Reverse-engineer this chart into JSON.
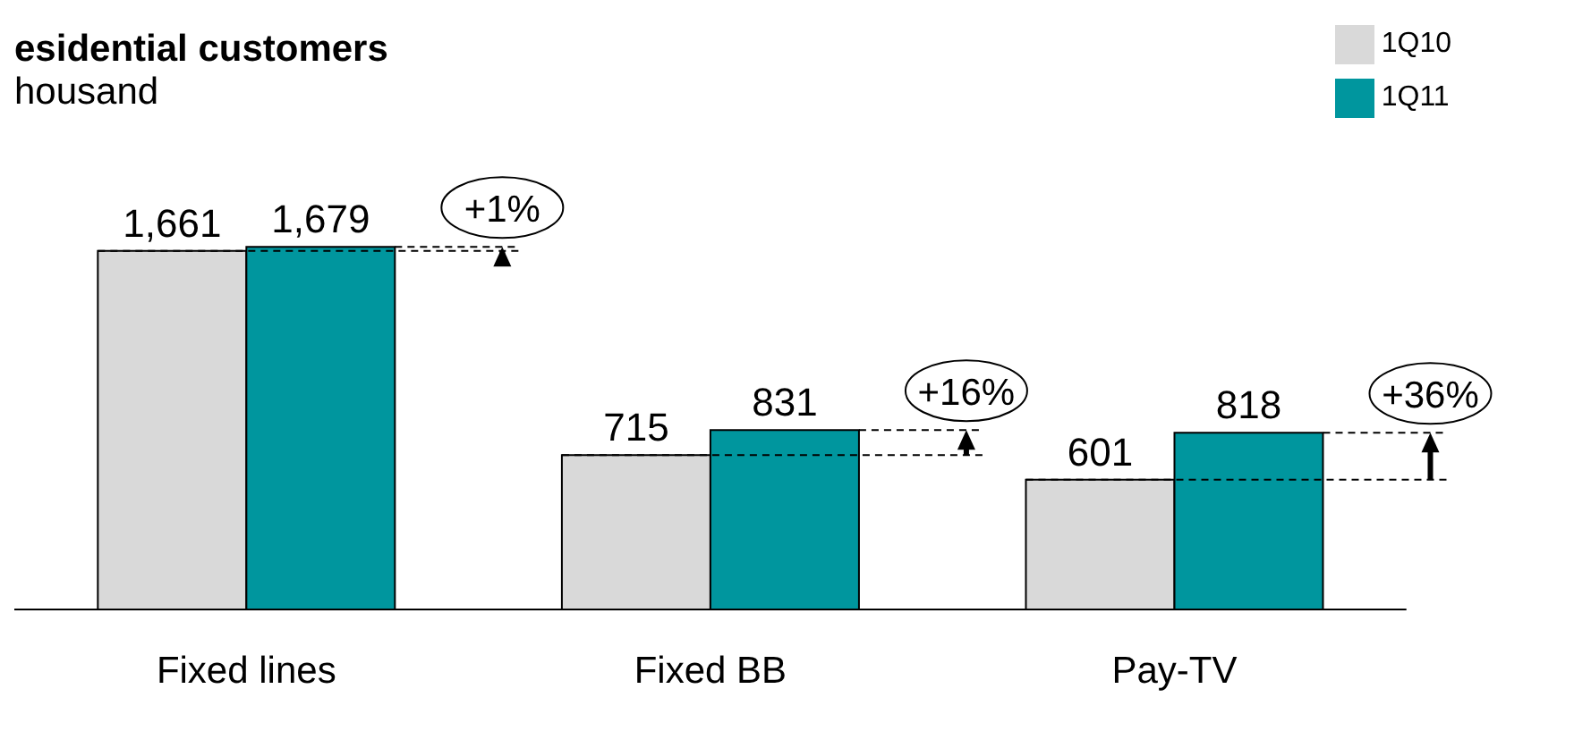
{
  "chart_data": {
    "type": "bar",
    "title": "esidential customers",
    "subtitle": "housand",
    "categories": [
      "Fixed lines",
      "Fixed BB",
      "Pay-TV"
    ],
    "series": [
      {
        "name": "1Q10",
        "color": "#d9d9d9",
        "values": [
          1661,
          715,
          601
        ],
        "value_labels": [
          "1,661",
          "715",
          "601"
        ]
      },
      {
        "name": "1Q11",
        "color": "#00969e",
        "values": [
          1679,
          831,
          818
        ],
        "value_labels": [
          "1,679",
          "831",
          "818"
        ]
      }
    ],
    "legend": "top right",
    "tick_labels": "x",
    "annotations": [
      "+1%",
      "+16%",
      "+36%"
    ]
  }
}
